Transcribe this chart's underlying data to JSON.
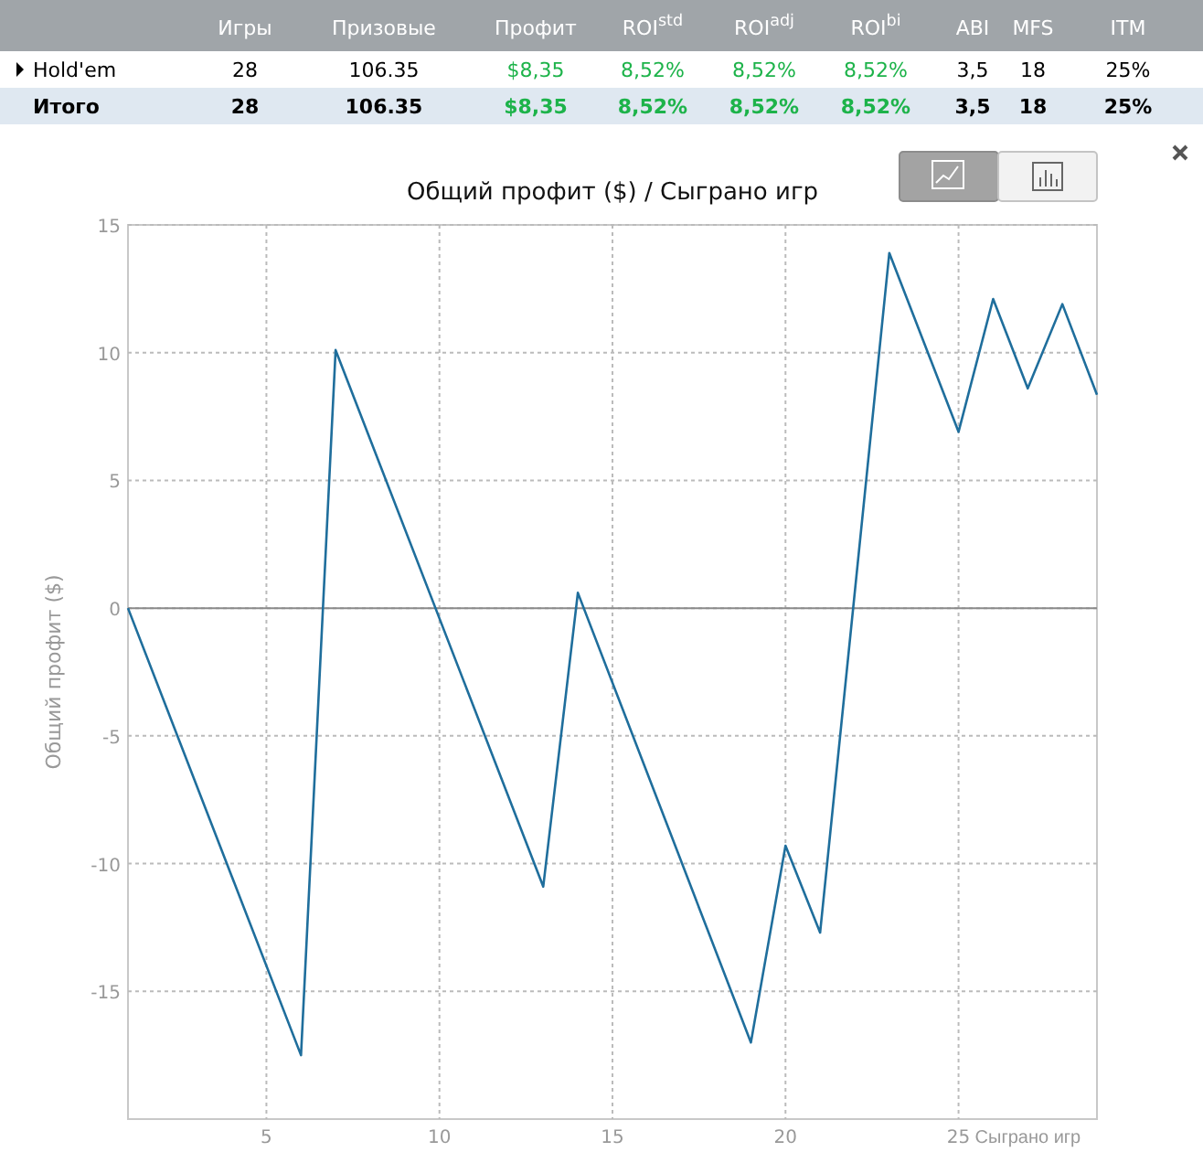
{
  "chart_data": [
    {
      "type": "other",
      "categories": [
        "Игры",
        "Призовые",
        "Профит",
        "ROI$^{std}$",
        "ROI$^{adj}$",
        "ROI$^{bi}$",
        "ABI",
        "MFS",
        "ITM"
      ],
      "y_categories": [
        "Hold'em",
        "Итого"
      ],
      "cell_labels": [
        [
          "28",
          "106.35",
          "$8,35",
          "8,52%",
          "8,52%",
          "8,52%",
          "3,5",
          "18",
          "25%"
        ],
        [
          "28",
          "106.35",
          "$8,35",
          "8,52%",
          "8,52%",
          "8,52%",
          "3,5",
          "18",
          "25%"
        ]
      ]
    },
    {
      "type": "line",
      "title": "Общий профит ($) / Сыграно игр",
      "xlabel": "Сыграно игр",
      "ylabel": "Общий профит ($)",
      "x": [
        1,
        6,
        7,
        13,
        14,
        19,
        20,
        21,
        23,
        25,
        26,
        27,
        28,
        29
      ],
      "series": [
        {
          "color": "#1f6e9c",
          "values": [
            0,
            -17.5,
            10.1,
            -10.9,
            0.6,
            -17,
            -9.3,
            -12.7,
            13.9,
            6.9,
            12.1,
            8.6,
            11.9,
            8.35
          ]
        }
      ],
      "xlim": [
        1,
        29
      ],
      "xticks": [
        5,
        10,
        15,
        20,
        25
      ],
      "ylim": [
        -20,
        15
      ],
      "yticks": [
        -15,
        -10,
        -5,
        0,
        5,
        10,
        15
      ],
      "grid": true,
      "ref_lines": [
        {
          "axis": "y",
          "value": 0,
          "color": "#8a8a8a"
        }
      ],
      "line_style": "solid",
      "marker": "none"
    }
  ]
}
